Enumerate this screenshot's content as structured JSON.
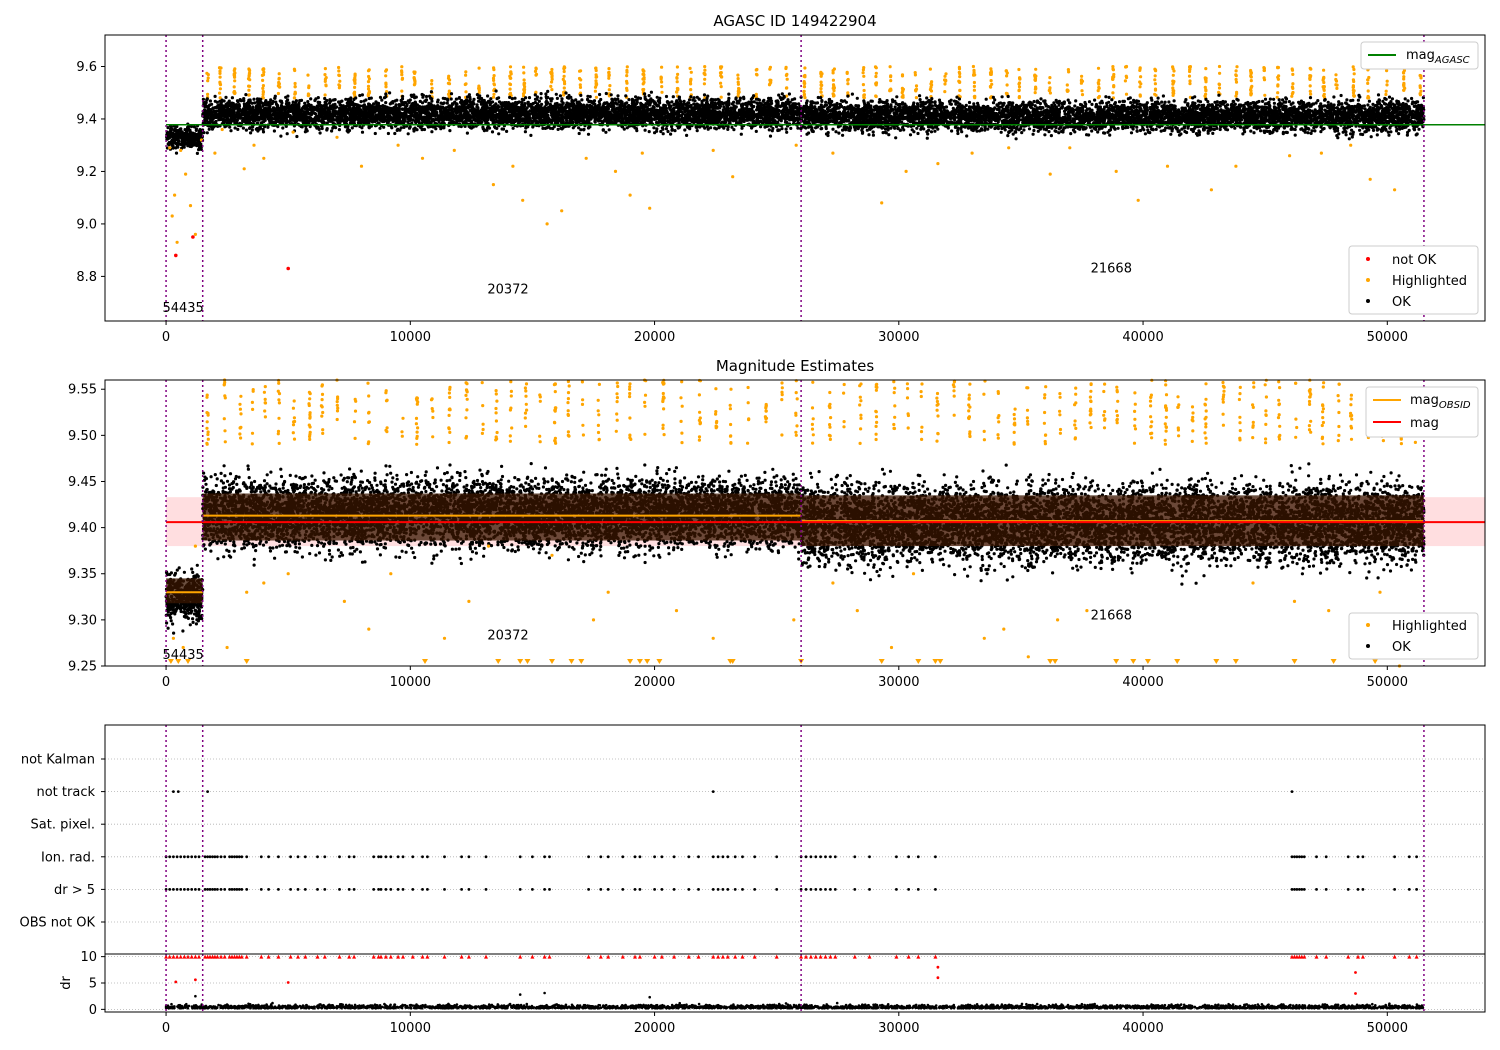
{
  "chart_data": [
    {
      "type": "scatter",
      "title": "AGASC ID 149422904",
      "xlabel": "",
      "ylabel": "",
      "xlim": [
        -2500,
        54000
      ],
      "ylim": [
        8.63,
        9.72
      ],
      "xticks": [
        0,
        10000,
        20000,
        30000,
        40000,
        50000
      ],
      "xtick_labels": [
        "0",
        "10000",
        "20000",
        "30000",
        "40000",
        "50000"
      ],
      "yticks": [
        8.8,
        9.0,
        9.2,
        9.4,
        9.6
      ],
      "ytick_labels": [
        "8.8",
        "9.0",
        "9.2",
        "9.4",
        "9.6"
      ],
      "grid": false,
      "vlines": [
        0,
        1500,
        26000,
        51500
      ],
      "obsid_labels": [
        {
          "text": "54435",
          "x": 700,
          "y": 8.68
        },
        {
          "text": "20372",
          "x": 14000,
          "y": 8.75
        },
        {
          "text": "21668",
          "x": 38700,
          "y": 8.83
        }
      ],
      "mag_agasc": {
        "value": 9.378,
        "x_range": [
          0,
          54000
        ],
        "color": "#008000"
      },
      "ok_bands": [
        {
          "x0": 0,
          "x1": 1500,
          "center": 9.33,
          "spread": 0.05
        },
        {
          "x0": 1500,
          "x1": 26000,
          "center": 9.42,
          "spread": 0.07
        },
        {
          "x0": 26000,
          "x1": 51500,
          "center": 9.41,
          "spread": 0.07
        }
      ],
      "highlighted_upper": {
        "x0": 1500,
        "x1": 51500,
        "center": 9.54,
        "spread": 0.06
      },
      "highlighted_outliers": [
        [
          150,
          9.29
        ],
        [
          250,
          9.03
        ],
        [
          350,
          9.11
        ],
        [
          450,
          8.93
        ],
        [
          600,
          9.28
        ],
        [
          800,
          9.19
        ],
        [
          1000,
          9.07
        ],
        [
          1200,
          8.96
        ],
        [
          1450,
          9.32
        ],
        [
          2000,
          9.27
        ],
        [
          2300,
          9.36
        ],
        [
          3200,
          9.21
        ],
        [
          3600,
          9.3
        ],
        [
          4000,
          9.25
        ],
        [
          5200,
          9.35
        ],
        [
          7000,
          9.33
        ],
        [
          8000,
          9.22
        ],
        [
          9500,
          9.3
        ],
        [
          10500,
          9.25
        ],
        [
          11800,
          9.28
        ],
        [
          13400,
          9.15
        ],
        [
          14200,
          9.22
        ],
        [
          14600,
          9.09
        ],
        [
          15600,
          9.0
        ],
        [
          16200,
          9.05
        ],
        [
          17200,
          9.25
        ],
        [
          18400,
          9.2
        ],
        [
          19000,
          9.11
        ],
        [
          19500,
          9.27
        ],
        [
          19800,
          9.06
        ],
        [
          22400,
          9.28
        ],
        [
          23200,
          9.18
        ],
        [
          25800,
          9.3
        ],
        [
          27300,
          9.27
        ],
        [
          29300,
          9.08
        ],
        [
          30300,
          9.2
        ],
        [
          31600,
          9.23
        ],
        [
          33000,
          9.27
        ],
        [
          34500,
          9.29
        ],
        [
          36200,
          9.19
        ],
        [
          37000,
          9.29
        ],
        [
          38900,
          9.2
        ],
        [
          39800,
          9.09
        ],
        [
          41000,
          9.22
        ],
        [
          42800,
          9.13
        ],
        [
          43800,
          9.22
        ],
        [
          46000,
          9.26
        ],
        [
          47300,
          9.27
        ],
        [
          48500,
          9.3
        ],
        [
          49300,
          9.17
        ],
        [
          50300,
          9.13
        ]
      ],
      "not_ok_points": [
        [
          400,
          8.88
        ],
        [
          1100,
          8.95
        ],
        [
          5000,
          8.83
        ]
      ],
      "legend_line": {
        "label": "mag",
        "sub": "AGASC",
        "placement": "upper right"
      },
      "legend_points": [
        {
          "label": "not OK",
          "color": "#ff0000"
        },
        {
          "label": "Highlighted",
          "color": "#ffa500"
        },
        {
          "label": "OK",
          "color": "#000000"
        }
      ],
      "legend_points_placement": "lower right"
    },
    {
      "type": "scatter",
      "title": "Magnitude Estimates",
      "xlabel": "",
      "ylabel": "",
      "xlim": [
        -2500,
        54000
      ],
      "ylim": [
        9.25,
        9.56
      ],
      "xticks": [
        0,
        10000,
        20000,
        30000,
        40000,
        50000
      ],
      "xtick_labels": [
        "0",
        "10000",
        "20000",
        "30000",
        "40000",
        "50000"
      ],
      "yticks": [
        9.25,
        9.3,
        9.35,
        9.4,
        9.45,
        9.5,
        9.55
      ],
      "ytick_labels": [
        "9.25",
        "9.30",
        "9.35",
        "9.40",
        "9.45",
        "9.50",
        "9.55"
      ],
      "grid": false,
      "vlines": [
        0,
        1500,
        26000,
        51500
      ],
      "obsid_labels": [
        {
          "text": "54435",
          "x": 700,
          "y": 9.262
        },
        {
          "text": "20372",
          "x": 14000,
          "y": 9.283
        },
        {
          "text": "21668",
          "x": 38700,
          "y": 9.305
        }
      ],
      "mag": {
        "value": 9.406,
        "band": [
          9.38,
          9.433
        ],
        "x_range": [
          0,
          54000
        ],
        "color": "#ff0000"
      },
      "mag_obsid": [
        {
          "x0": 0,
          "x1": 1500,
          "value": 9.33,
          "band": [
            9.318,
            9.345
          ]
        },
        {
          "x0": 1500,
          "x1": 26000,
          "value": 9.413,
          "band": [
            9.386,
            9.437
          ]
        },
        {
          "x0": 26000,
          "x1": 51500,
          "value": 9.407,
          "band": [
            9.38,
            9.435
          ]
        }
      ],
      "ok_bands": [
        {
          "x0": 0,
          "x1": 1500,
          "center": 9.325,
          "spread": 0.03
        },
        {
          "x0": 1500,
          "x1": 26000,
          "center": 9.415,
          "spread": 0.045
        },
        {
          "x0": 26000,
          "x1": 51500,
          "center": 9.405,
          "spread": 0.05
        }
      ],
      "highlighted_upper": {
        "x0": 1500,
        "x1": 51500,
        "center": 9.53,
        "spread": 0.04
      },
      "highlighted_outliers": [
        [
          300,
          9.28
        ],
        [
          700,
          9.27
        ],
        [
          1200,
          9.38
        ],
        [
          2500,
          9.27
        ],
        [
          3300,
          9.33
        ],
        [
          4000,
          9.34
        ],
        [
          5000,
          9.35
        ],
        [
          7300,
          9.32
        ],
        [
          8300,
          9.29
        ],
        [
          9200,
          9.35
        ],
        [
          11400,
          9.28
        ],
        [
          12400,
          9.32
        ],
        [
          13200,
          9.38
        ],
        [
          15800,
          9.37
        ],
        [
          17500,
          9.3
        ],
        [
          18100,
          9.33
        ],
        [
          20900,
          9.31
        ],
        [
          22400,
          9.28
        ],
        [
          25700,
          9.3
        ],
        [
          27300,
          9.34
        ],
        [
          28300,
          9.31
        ],
        [
          29700,
          9.27
        ],
        [
          30600,
          9.35
        ],
        [
          33500,
          9.28
        ],
        [
          34300,
          9.29
        ],
        [
          35300,
          9.26
        ],
        [
          36500,
          9.3
        ],
        [
          37700,
          9.31
        ],
        [
          44500,
          9.34
        ],
        [
          46200,
          9.32
        ],
        [
          47600,
          9.31
        ],
        [
          48500,
          9.29
        ],
        [
          49700,
          9.33
        ],
        [
          50500,
          9.25
        ]
      ],
      "highlighted_bottom_markers": [
        200,
        500,
        900,
        3300,
        10600,
        13600,
        14500,
        14800,
        15800,
        16600,
        17000,
        19000,
        19400,
        19700,
        20200,
        23100,
        23200,
        26000,
        29300,
        30800,
        31500,
        31700,
        36200,
        36400,
        38900,
        39600,
        40200,
        41400,
        43000,
        43800,
        46200,
        47800,
        49500
      ],
      "legend_line": [
        {
          "label": "mag",
          "sub": "OBSID",
          "color": "#ffa500"
        },
        {
          "label": "mag",
          "sub": "",
          "color": "#ff0000"
        }
      ],
      "legend_points": [
        {
          "label": "Highlighted",
          "color": "#ffa500"
        },
        {
          "label": "OK",
          "color": "#000000"
        }
      ],
      "legend_points_placement": "lower right"
    },
    {
      "type": "scatter",
      "title": "",
      "xlabel": "",
      "ylabel": "",
      "xlim": [
        -2500,
        54000
      ],
      "grid": true,
      "vlines": [
        0,
        1500,
        26000,
        51500
      ],
      "categories": [
        "not Kalman",
        "not track",
        "Sat. pixel.",
        "Ion. rad.",
        "dr > 5",
        "OBS not OK"
      ],
      "flag_points": {
        "not Kalman": [],
        "not track": [
          300,
          500,
          1700,
          22400,
          46100
        ],
        "Sat. pixel.": [],
        "Ion. rad.": [
          0,
          150,
          300,
          450,
          600,
          750,
          900,
          1050,
          1200,
          1350,
          1600,
          1700,
          1800,
          1900,
          2000,
          2100,
          2250,
          2400,
          2600,
          2700,
          2800,
          2900,
          3000,
          3100,
          3300,
          3900,
          4200,
          4600,
          5100,
          5400,
          5700,
          6200,
          6500,
          7100,
          7500,
          7700,
          8500,
          8700,
          8800,
          9000,
          9200,
          9500,
          9700,
          10100,
          10500,
          10700,
          11400,
          12100,
          12400,
          13100,
          14500,
          15000,
          15500,
          15700,
          17300,
          17800,
          18100,
          18700,
          19200,
          19400,
          20000,
          20300,
          20800,
          21400,
          21800,
          22400,
          22600,
          22800,
          23000,
          23300,
          23600,
          24100,
          25000,
          26000,
          26200,
          26400,
          26600,
          26800,
          27000,
          27200,
          27400,
          28200,
          28800,
          29900,
          30400,
          30800,
          31500,
          46100,
          46200,
          46300,
          46400,
          46500,
          46600,
          47100,
          47500,
          48400,
          48800,
          49000,
          50300,
          50900,
          51200
        ],
        "dr > 5": [
          0,
          150,
          300,
          450,
          600,
          750,
          900,
          1050,
          1200,
          1350,
          1600,
          1700,
          1800,
          1900,
          2000,
          2100,
          2250,
          2400,
          2600,
          2700,
          2800,
          2900,
          3000,
          3100,
          3300,
          3900,
          4200,
          4600,
          5100,
          5400,
          5700,
          6200,
          6500,
          7100,
          7500,
          7700,
          8500,
          8700,
          8800,
          9000,
          9200,
          9500,
          9700,
          10100,
          10500,
          10700,
          11400,
          12100,
          12400,
          13100,
          14500,
          15000,
          15500,
          15700,
          17300,
          17800,
          18100,
          18700,
          19200,
          19400,
          20000,
          20300,
          20800,
          21400,
          21800,
          22400,
          22600,
          22800,
          23000,
          23300,
          23600,
          24100,
          25000,
          26000,
          26200,
          26400,
          26600,
          26800,
          27000,
          27200,
          27400,
          28200,
          28800,
          29900,
          30400,
          30800,
          31500,
          46100,
          46200,
          46300,
          46400,
          46500,
          46600,
          47100,
          47500,
          48400,
          48800,
          49000,
          50300,
          50900,
          51200
        ],
        "OBS not OK": []
      }
    },
    {
      "type": "scatter",
      "title": "",
      "xlabel": "",
      "ylabel": "dr",
      "xlim": [
        -2500,
        54000
      ],
      "ylim": [
        -0.5,
        10.5
      ],
      "xticks": [
        0,
        10000,
        20000,
        30000,
        40000,
        50000
      ],
      "xtick_labels": [
        "0",
        "10000",
        "20000",
        "30000",
        "40000",
        "50000"
      ],
      "yticks": [
        0,
        5,
        10
      ],
      "ytick_labels": [
        "0",
        "5",
        "10"
      ],
      "grid": true,
      "vlines": [
        0,
        1500,
        26000,
        51500
      ],
      "ok_band": {
        "x0": 0,
        "x1": 51500,
        "center": 0.5,
        "spread": 0.7
      },
      "capped_points_y": 10,
      "red_mid_points": [
        [
          400,
          5.2
        ],
        [
          1200,
          5.6
        ],
        [
          5000,
          5.1
        ],
        [
          31600,
          8.0
        ],
        [
          31600,
          6.0
        ],
        [
          48700,
          7.0
        ],
        [
          48700,
          3.0
        ]
      ],
      "black_mid_points": [
        [
          1200,
          2.5
        ],
        [
          14500,
          2.8
        ],
        [
          15500,
          3.1
        ],
        [
          19800,
          2.3
        ]
      ]
    }
  ]
}
